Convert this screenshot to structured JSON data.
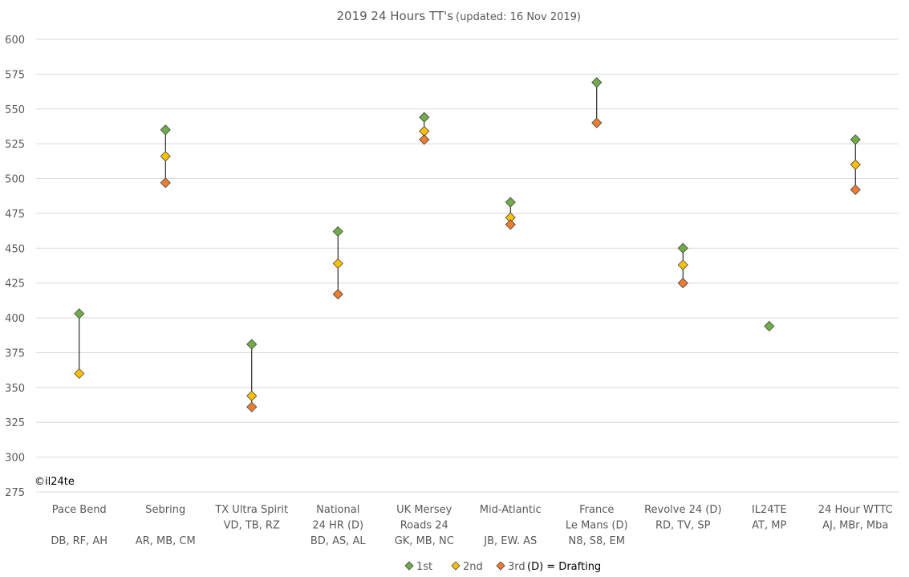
{
  "chart_data": {
    "type": "scatter",
    "title": "2019 24 Hours TT's",
    "subtitle": "(updated: 16 Nov 2019)",
    "ylim": [
      275,
      600
    ],
    "yticks": [
      275,
      300,
      325,
      350,
      375,
      400,
      425,
      450,
      475,
      500,
      525,
      550,
      575,
      600
    ],
    "grid": true,
    "categories": [
      {
        "lines": [
          "Pace Bend",
          "",
          "DB, RF, AH"
        ]
      },
      {
        "lines": [
          "Sebring",
          "",
          "AR, MB, CM"
        ]
      },
      {
        "lines": [
          "TX Ultra Spirit",
          "VD, TB, RZ"
        ]
      },
      {
        "lines": [
          "National",
          "24 HR (D)",
          "BD, AS, AL"
        ]
      },
      {
        "lines": [
          "UK Mersey",
          "Roads 24",
          "GK, MB, NC"
        ]
      },
      {
        "lines": [
          "Mid-Atlantic",
          "",
          "JB, EW. AS"
        ]
      },
      {
        "lines": [
          "France",
          "Le Mans (D)",
          "N8, S8, EM"
        ]
      },
      {
        "lines": [
          "Revolve 24 (D)",
          "RD, TV, SP"
        ]
      },
      {
        "lines": [
          "IL24TE",
          "AT, MP"
        ]
      },
      {
        "lines": [
          "24 Hour WTTC",
          "AJ, MBr, Mba"
        ]
      }
    ],
    "series": [
      {
        "name": "1st",
        "color": "#70ad47",
        "values": [
          403,
          535,
          381,
          462,
          544,
          483,
          569,
          450,
          394,
          528
        ]
      },
      {
        "name": "2nd",
        "color": "#ffc000",
        "values": [
          360,
          516,
          344,
          439,
          534,
          472,
          null,
          438,
          null,
          510
        ]
      },
      {
        "name": "3rd",
        "color": "#ed7d31",
        "values": [
          null,
          497,
          336,
          417,
          528,
          467,
          540,
          425,
          null,
          492
        ]
      }
    ],
    "legend": {
      "position": "bottom",
      "note": "(D) = Drafting"
    },
    "copyright": "©il24te"
  }
}
